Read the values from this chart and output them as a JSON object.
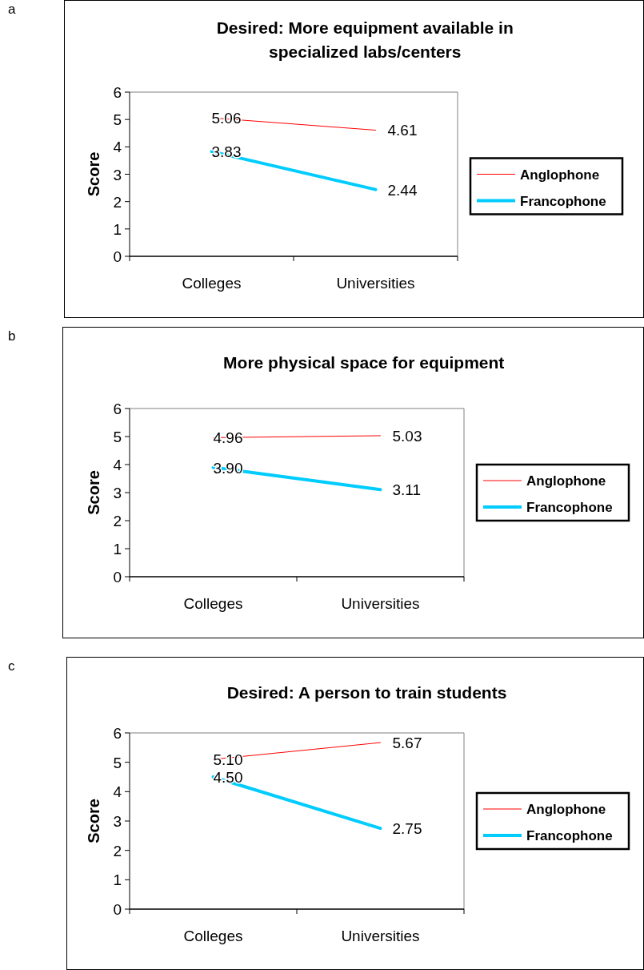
{
  "chart_data": [
    {
      "type": "line",
      "title": "Desired: More equipment available in specialized labs/centers",
      "ylabel": "Score",
      "categories": [
        "Colleges",
        "Universities"
      ],
      "series": [
        {
          "name": "Anglophone",
          "color": "#ff0000",
          "values": [
            5.06,
            4.61
          ],
          "value_labels": [
            "5.06",
            "4.61"
          ]
        },
        {
          "name": "Francophone",
          "color": "#00ccff",
          "values": [
            3.83,
            2.44
          ],
          "value_labels": [
            "3.83",
            "2.44"
          ]
        }
      ],
      "ylim": [
        0,
        6
      ],
      "yticks": [
        0,
        1,
        2,
        3,
        4,
        5,
        6
      ],
      "legend": "right",
      "marker": "none",
      "annotations": [
        "a"
      ]
    },
    {
      "type": "line",
      "title": "More physical space for equipment",
      "ylabel": "Score",
      "categories": [
        "Colleges",
        "Universities"
      ],
      "series": [
        {
          "name": "Anglophone",
          "color": "#ff0000",
          "values": [
            4.96,
            5.03
          ],
          "value_labels": [
            "4.96",
            "5.03"
          ]
        },
        {
          "name": "Francophone",
          "color": "#00ccff",
          "values": [
            3.9,
            3.11
          ],
          "value_labels": [
            "3.90",
            "3.11"
          ]
        }
      ],
      "ylim": [
        0,
        6
      ],
      "yticks": [
        0,
        1,
        2,
        3,
        4,
        5,
        6
      ],
      "legend": "right",
      "marker": "none",
      "annotations": [
        "b"
      ]
    },
    {
      "type": "line",
      "title": "Desired: A person to train students",
      "ylabel": "Score",
      "categories": [
        "Colleges",
        "Universities"
      ],
      "series": [
        {
          "name": "Anglophone",
          "color": "#ff0000",
          "values": [
            5.1,
            5.67
          ],
          "value_labels": [
            "5.10",
            "5.67"
          ]
        },
        {
          "name": "Francophone",
          "color": "#00ccff",
          "values": [
            4.5,
            2.75
          ],
          "value_labels": [
            "4.50",
            "2.75"
          ]
        }
      ],
      "ylim": [
        0,
        6
      ],
      "yticks": [
        0,
        1,
        2,
        3,
        4,
        5,
        6
      ],
      "legend": "right",
      "marker": "none",
      "annotations": [
        "c"
      ]
    }
  ]
}
